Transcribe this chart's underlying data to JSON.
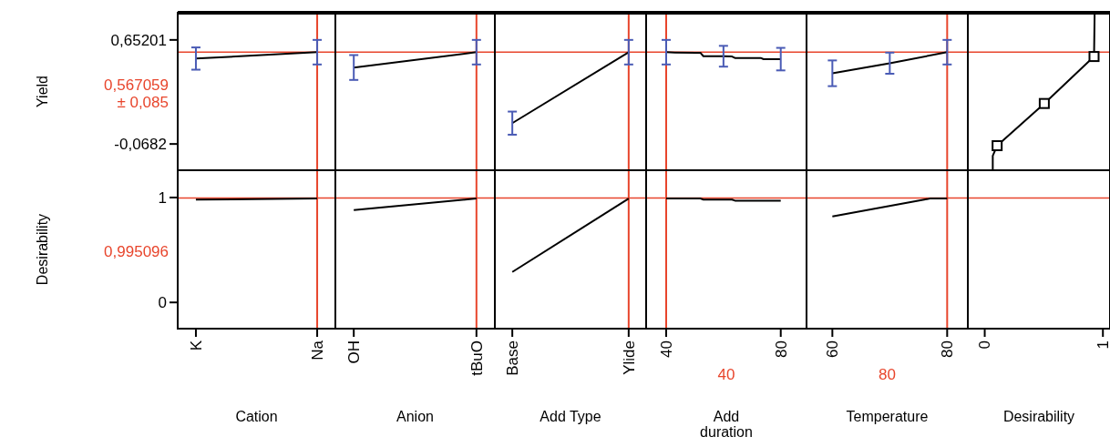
{
  "chart_data": [
    {
      "type": "line",
      "ylabel": "Yield",
      "categories": [
        "K",
        "Na"
      ],
      "ylim": [
        -0.25,
        0.84
      ],
      "yticks": [
        {
          "value": 0.65201,
          "label": "0,65201"
        },
        {
          "value": -0.0682,
          "label": "-0,0682"
        }
      ],
      "tick_labels": "y",
      "series": [
        {
          "color": "#000000",
          "values": [
            0.523,
            0.567
          ],
          "errors": [
            0.077,
            0.085
          ]
        }
      ],
      "ref_lines": [
        {
          "axis": "y",
          "value": 0.567059,
          "label": "0,567059\n± 0,085",
          "color": "#e8452c"
        },
        {
          "axis": "x",
          "value": "Na",
          "color": "#e8452c"
        }
      ]
    },
    {
      "type": "line",
      "categories": [
        "OH",
        "tBuO"
      ],
      "ylim": [
        -0.25,
        0.84
      ],
      "tick_labels": false,
      "series": [
        {
          "color": "#000000",
          "values": [
            0.461,
            0.567
          ],
          "errors": [
            0.086,
            0.085
          ]
        }
      ],
      "ref_lines": [
        {
          "axis": "y",
          "value": 0.567059,
          "color": "#e8452c"
        },
        {
          "axis": "x",
          "value": "tBuO",
          "color": "#e8452c"
        }
      ]
    },
    {
      "type": "line",
      "categories": [
        "Base",
        "Ylide"
      ],
      "ylim": [
        -0.25,
        0.84
      ],
      "tick_labels": false,
      "series": [
        {
          "color": "#000000",
          "values": [
            0.076,
            0.567
          ],
          "errors": [
            0.08,
            0.085
          ]
        }
      ],
      "ref_lines": [
        {
          "axis": "y",
          "value": 0.567059,
          "color": "#e8452c"
        },
        {
          "axis": "x",
          "value": "Ylide",
          "color": "#e8452c"
        }
      ]
    },
    {
      "type": "line",
      "xlim": [
        33,
        89
      ],
      "ylim": [
        -0.25,
        0.84
      ],
      "tick_labels": false,
      "series": [
        {
          "color": "#000000",
          "x": [
            40,
            43,
            52,
            53,
            60,
            63,
            64,
            73,
            74,
            80
          ],
          "values": [
            0.567,
            0.565,
            0.562,
            0.539,
            0.539,
            0.537,
            0.527,
            0.527,
            0.519,
            0.519
          ],
          "errors": [
            0.085,
            null,
            null,
            null,
            0.072,
            null,
            null,
            null,
            null,
            0.078
          ]
        }
      ],
      "ref_lines": [
        {
          "axis": "y",
          "value": 0.567059,
          "color": "#e8452c"
        },
        {
          "axis": "x",
          "value": 40,
          "color": "#e8452c"
        }
      ]
    },
    {
      "type": "line",
      "xlim": [
        55.5,
        83.6
      ],
      "ylim": [
        -0.25,
        0.84
      ],
      "tick_labels": false,
      "series": [
        {
          "color": "#000000",
          "x": [
            60,
            70,
            80
          ],
          "values": [
            0.421,
            0.491,
            0.567
          ],
          "errors": [
            0.089,
            0.073,
            0.085
          ]
        }
      ],
      "ref_lines": [
        {
          "axis": "y",
          "value": 0.567059,
          "color": "#e8452c"
        },
        {
          "axis": "x",
          "value": 80,
          "color": "#e8452c"
        }
      ]
    },
    {
      "type": "line",
      "xlim": [
        -0.143,
        1.06
      ],
      "ylim": [
        -0.25,
        0.84
      ],
      "tick_labels": false,
      "series": [
        {
          "color": "#000000",
          "x": [
            0.068,
            0.068,
            0.105,
            0.504,
            0.925,
            0.93
          ],
          "values": [
            -0.25,
            -0.15,
            -0.08,
            0.212,
            0.537,
            0.84
          ]
        },
        {
          "type": "scatter",
          "marker": "square",
          "color": "#000000",
          "x": [
            0.105,
            0.504,
            0.925
          ],
          "values": [
            -0.08,
            0.212,
            0.537
          ]
        }
      ],
      "ref_lines": [
        {
          "axis": "y",
          "value": 0.567059,
          "color": "#e8452c"
        }
      ]
    },
    {
      "type": "line",
      "ylabel": "Desirability",
      "xlabel": "Cation",
      "categories": [
        "K",
        "Na"
      ],
      "ylim": [
        -0.25,
        1.26
      ],
      "yticks": [
        0,
        1
      ],
      "series": [
        {
          "color": "#000000",
          "values": [
            0.98,
            0.99
          ]
        }
      ],
      "ref_lines": [
        {
          "axis": "y",
          "value": 0.995096,
          "label": "0,995096",
          "color": "#e8452c"
        },
        {
          "axis": "x",
          "value": "Na",
          "color": "#e8452c"
        }
      ]
    },
    {
      "type": "line",
      "xlabel": "Anion",
      "categories": [
        "OH",
        "tBuO"
      ],
      "ylim": [
        -0.25,
        1.26
      ],
      "tick_labels": "x",
      "series": [
        {
          "color": "#000000",
          "values": [
            0.88,
            0.99
          ]
        }
      ],
      "ref_lines": [
        {
          "axis": "y",
          "value": 0.995096,
          "color": "#e8452c"
        },
        {
          "axis": "x",
          "value": "tBuO",
          "color": "#e8452c"
        }
      ]
    },
    {
      "type": "line",
      "xlabel": "Add Type",
      "categories": [
        "Base",
        "Ylide"
      ],
      "ylim": [
        -0.25,
        1.26
      ],
      "tick_labels": "x",
      "series": [
        {
          "color": "#000000",
          "values": [
            0.29,
            0.99
          ]
        }
      ],
      "ref_lines": [
        {
          "axis": "y",
          "value": 0.995096,
          "color": "#e8452c"
        },
        {
          "axis": "x",
          "value": "Ylide",
          "color": "#e8452c"
        }
      ]
    },
    {
      "type": "line",
      "xlabel": "Add duration",
      "xlim": [
        33,
        89
      ],
      "xticks": [
        40,
        80
      ],
      "ylim": [
        -0.25,
        1.26
      ],
      "tick_labels": "x",
      "series": [
        {
          "color": "#000000",
          "x": [
            40,
            52,
            53,
            63,
            64,
            80
          ],
          "values": [
            0.99,
            0.99,
            0.98,
            0.98,
            0.97,
            0.97
          ]
        }
      ],
      "ref_lines": [
        {
          "axis": "y",
          "value": 0.995096,
          "color": "#e8452c"
        },
        {
          "axis": "x",
          "value": 40,
          "label": "40",
          "color": "#e8452c"
        }
      ]
    },
    {
      "type": "line",
      "xlabel": "Temperature",
      "xlim": [
        55.5,
        83.6
      ],
      "xticks": [
        60,
        80
      ],
      "ylim": [
        -0.25,
        1.26
      ],
      "tick_labels": "x",
      "series": [
        {
          "color": "#000000",
          "x": [
            60,
            76,
            77,
            80
          ],
          "values": [
            0.82,
            0.98,
            0.99,
            0.99
          ]
        }
      ],
      "ref_lines": [
        {
          "axis": "y",
          "value": 0.995096,
          "color": "#e8452c"
        },
        {
          "axis": "x",
          "value": 80,
          "label": "80",
          "color": "#e8452c"
        }
      ]
    },
    {
      "type": "line",
      "xlabel": "Desirability",
      "xlim": [
        -0.143,
        1.06
      ],
      "xticks": [
        0,
        1
      ],
      "ylim": [
        -0.25,
        1.26
      ],
      "tick_labels": "x",
      "ref_lines": [
        {
          "axis": "y",
          "value": 0.995096,
          "color": "#e8452c"
        }
      ]
    }
  ]
}
